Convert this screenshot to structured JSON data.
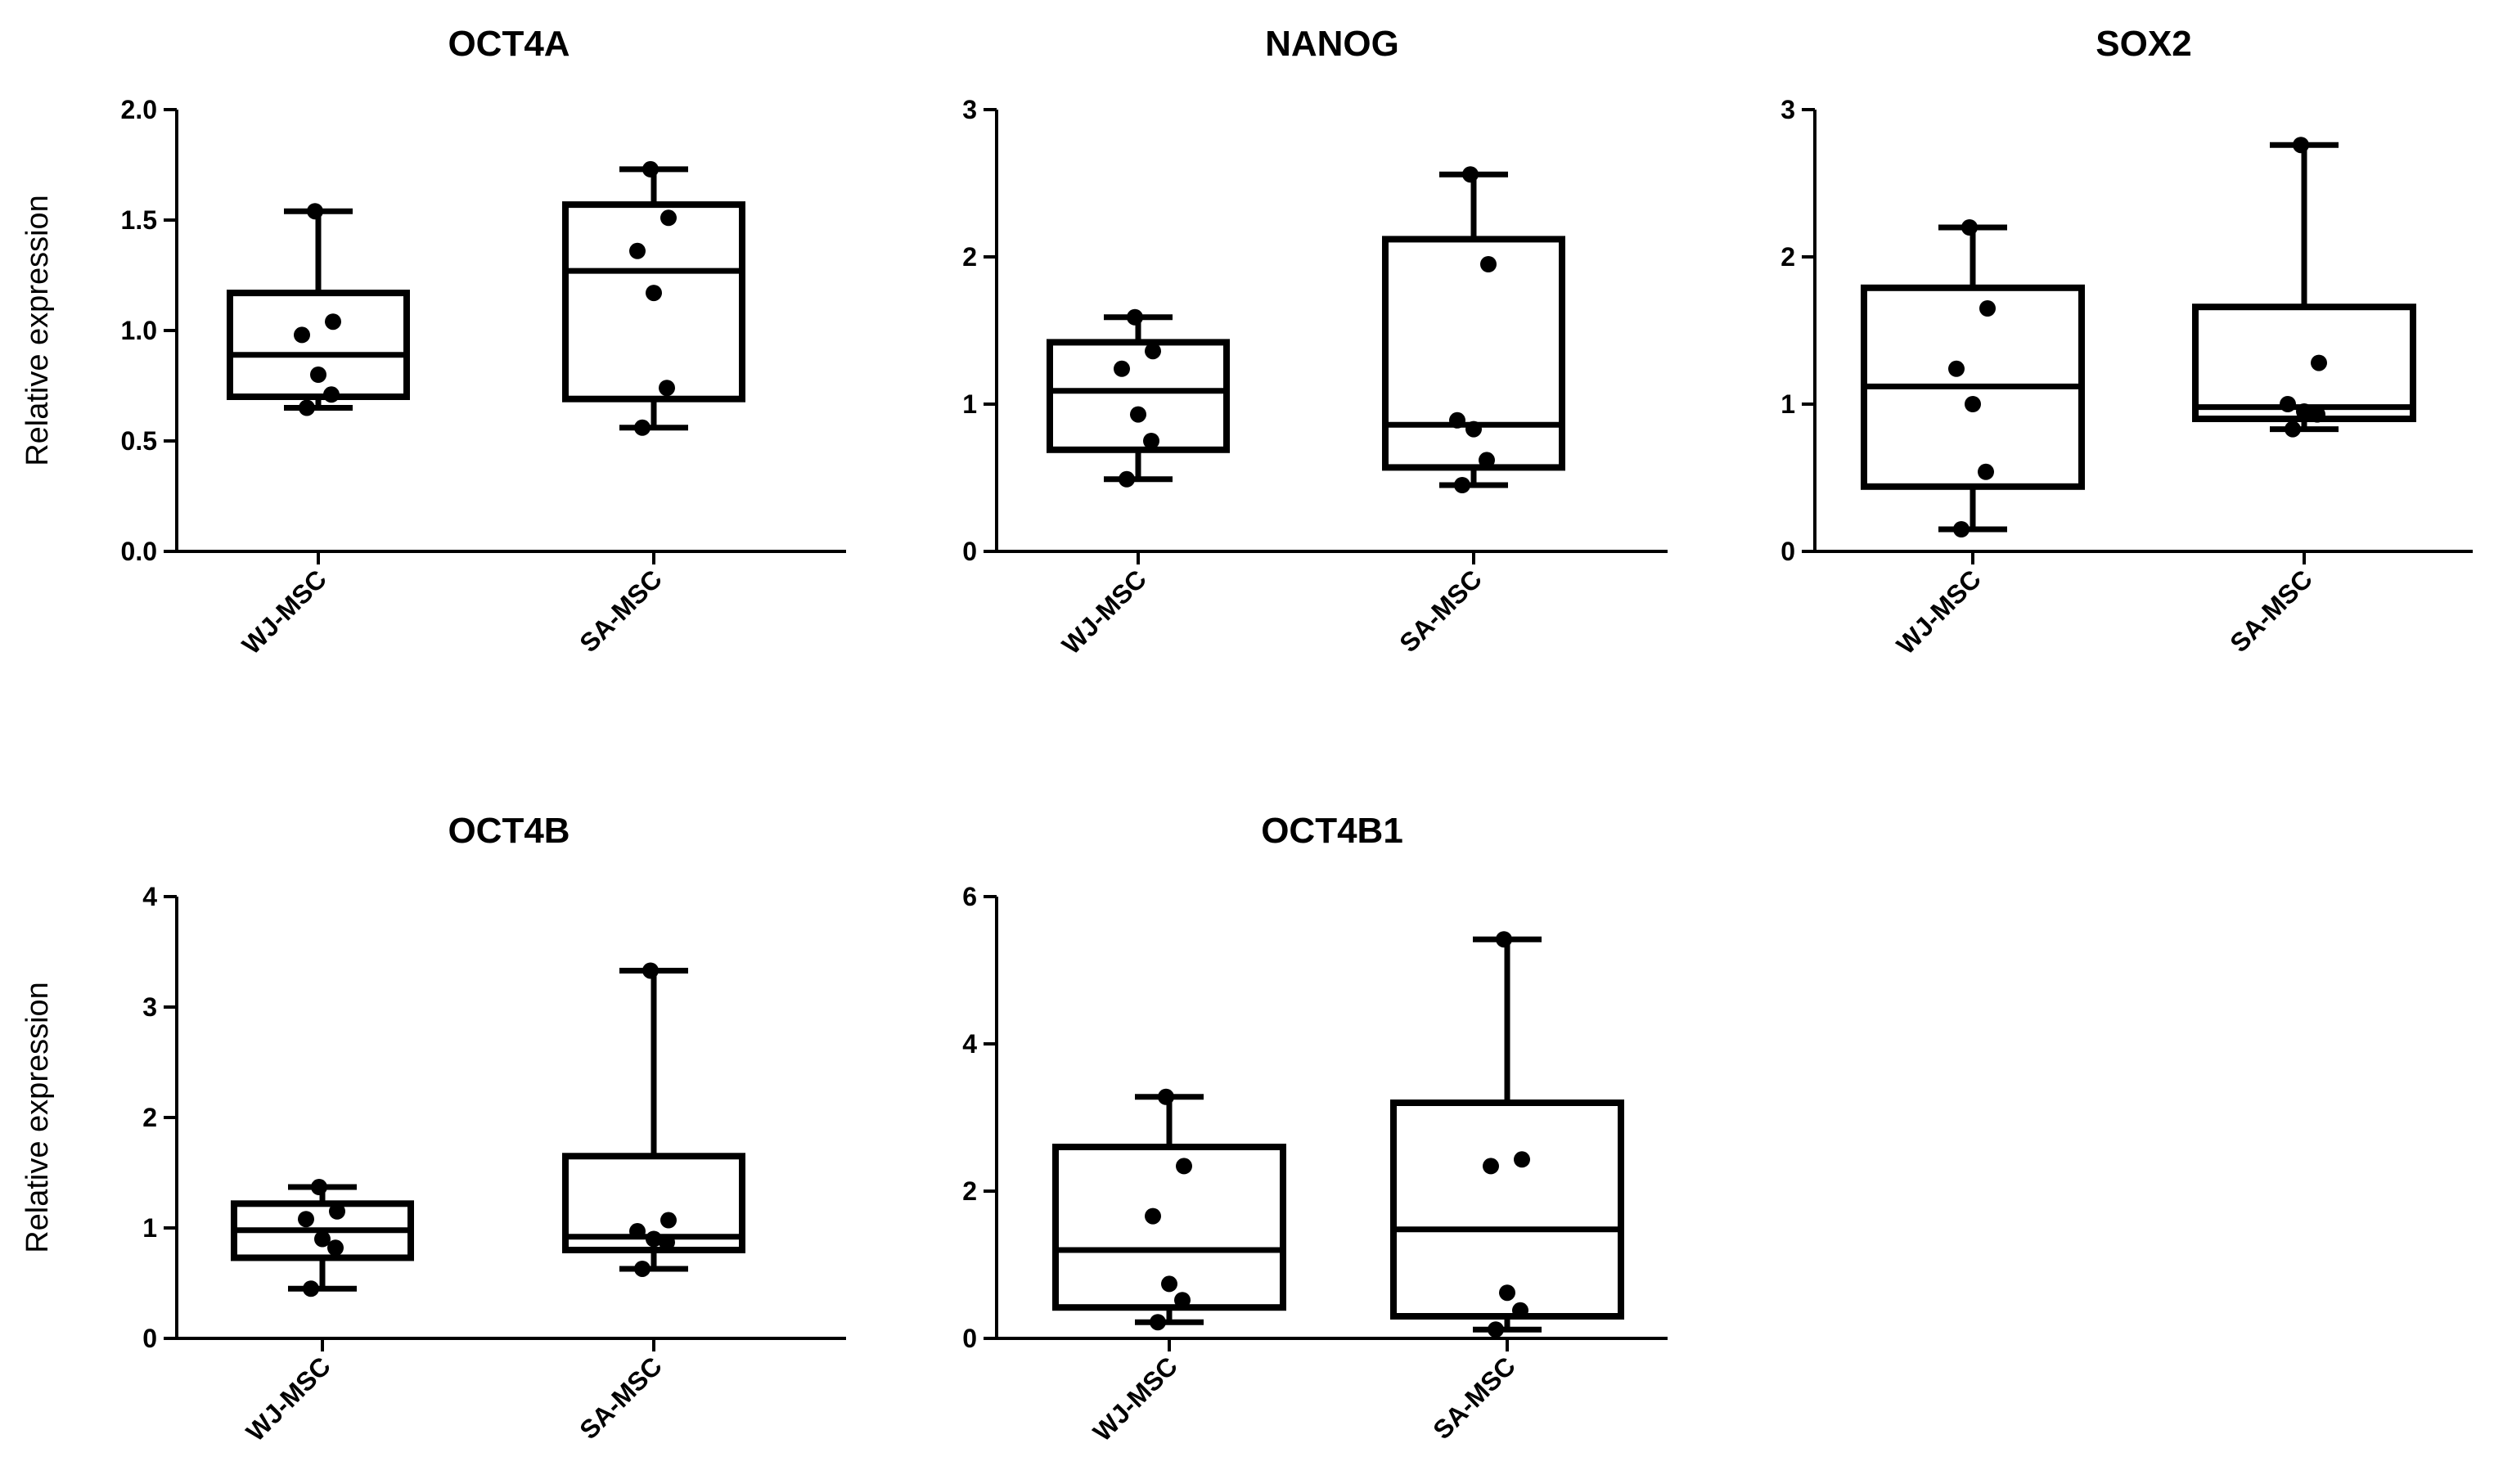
{
  "chart_data": [
    {
      "type": "box",
      "title": "OCT4A",
      "ylabel": "Relative expression",
      "ylim": [
        0,
        2
      ],
      "yticks": [
        "0.0",
        "0.5",
        "1.0",
        "1.5",
        "2.0"
      ],
      "categories": [
        "WJ-MSC",
        "SA-MSC"
      ],
      "series": [
        {
          "name": "WJ-MSC",
          "min": 0.65,
          "q1": 0.7,
          "median": 0.89,
          "q3": 1.17,
          "max": 1.54,
          "points": [
            0.65,
            0.71,
            0.8,
            0.98,
            1.04,
            1.54
          ]
        },
        {
          "name": "SA-MSC",
          "min": 0.56,
          "q1": 0.69,
          "median": 1.27,
          "q3": 1.57,
          "max": 1.73,
          "points": [
            0.56,
            0.74,
            1.17,
            1.36,
            1.51,
            1.73
          ]
        }
      ]
    },
    {
      "type": "box",
      "title": "NANOG",
      "ylabel": "",
      "ylim": [
        0,
        3
      ],
      "yticks": [
        "0",
        "1",
        "2",
        "3"
      ],
      "categories": [
        "WJ-MSC",
        "SA-MSC"
      ],
      "series": [
        {
          "name": "WJ-MSC",
          "min": 0.49,
          "q1": 0.69,
          "median": 1.09,
          "q3": 1.42,
          "max": 1.59,
          "points": [
            0.49,
            0.75,
            0.93,
            1.24,
            1.36,
            1.59
          ]
        },
        {
          "name": "SA-MSC",
          "min": 0.45,
          "q1": 0.57,
          "median": 0.86,
          "q3": 2.12,
          "max": 2.56,
          "points": [
            0.45,
            0.62,
            0.83,
            0.89,
            1.95,
            2.56
          ]
        }
      ]
    },
    {
      "type": "box",
      "title": "SOX2",
      "ylabel": "",
      "ylim": [
        0,
        3
      ],
      "yticks": [
        "0",
        "1",
        "2",
        "3"
      ],
      "categories": [
        "WJ-MSC",
        "SA-MSC"
      ],
      "series": [
        {
          "name": "WJ-MSC",
          "min": 0.15,
          "q1": 0.44,
          "median": 1.12,
          "q3": 1.79,
          "max": 2.2,
          "points": [
            0.15,
            0.54,
            1.0,
            1.24,
            1.65,
            2.2
          ]
        },
        {
          "name": "SA-MSC",
          "min": 0.83,
          "q1": 0.9,
          "median": 0.98,
          "q3": 1.66,
          "max": 2.76,
          "points": [
            0.83,
            0.93,
            0.95,
            1.0,
            1.28,
            2.76
          ]
        }
      ]
    },
    {
      "type": "box",
      "title": "OCT4B",
      "ylabel": "Relative expression",
      "ylim": [
        0,
        4
      ],
      "yticks": [
        "0",
        "1",
        "2",
        "3",
        "4"
      ],
      "categories": [
        "WJ-MSC",
        "SA-MSC"
      ],
      "series": [
        {
          "name": "WJ-MSC",
          "min": 0.45,
          "q1": 0.73,
          "median": 0.98,
          "q3": 1.22,
          "max": 1.37,
          "points": [
            0.45,
            0.82,
            0.9,
            1.08,
            1.15,
            1.37
          ]
        },
        {
          "name": "SA-MSC",
          "min": 0.63,
          "q1": 0.8,
          "median": 0.92,
          "q3": 1.65,
          "max": 3.33,
          "points": [
            0.63,
            0.87,
            0.9,
            0.97,
            1.07,
            3.33
          ]
        }
      ]
    },
    {
      "type": "box",
      "title": "OCT4B1",
      "ylabel": "",
      "ylim": [
        0,
        6
      ],
      "yticks": [
        "0",
        "2",
        "4",
        "6"
      ],
      "categories": [
        "WJ-MSC",
        "SA-MSC"
      ],
      "series": [
        {
          "name": "WJ-MSC",
          "min": 0.22,
          "q1": 0.42,
          "median": 1.2,
          "q3": 2.6,
          "max": 3.28,
          "points": [
            0.22,
            0.52,
            0.74,
            1.66,
            2.34,
            3.28
          ]
        },
        {
          "name": "SA-MSC",
          "min": 0.12,
          "q1": 0.3,
          "median": 1.48,
          "q3": 3.2,
          "max": 5.42,
          "points": [
            0.12,
            0.38,
            0.62,
            2.34,
            2.43,
            5.42
          ]
        }
      ]
    }
  ]
}
